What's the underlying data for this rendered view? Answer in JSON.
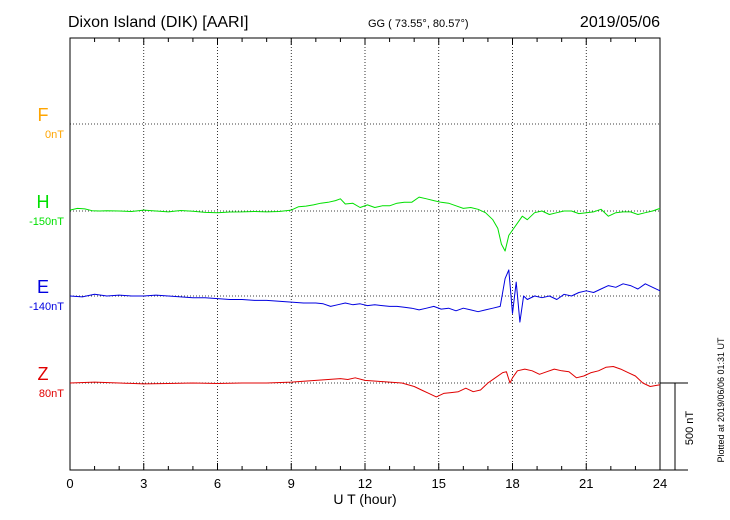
{
  "header": {
    "station": "Dixon Island (DIK)  [AARI]",
    "coords": "GG ( 73.55°,  80.57°)",
    "date": "2019/05/06"
  },
  "side_note": "Plotted at 2019/06/06 01:31  UT",
  "scale_label": "500 nT",
  "chart_data": {
    "type": "line",
    "xlabel": "U T (hour)",
    "xlim": [
      0,
      24
    ],
    "x_ticks": [
      "0",
      "3",
      "6",
      "9",
      "12",
      "15",
      "18",
      "21",
      "24"
    ],
    "scale_bar_nT": 500,
    "grid": true,
    "series": [
      {
        "name": "F",
        "offset_label": "0nT",
        "color": "#ffa500",
        "x": [],
        "y": []
      },
      {
        "name": "H",
        "offset_label": "-150nT",
        "color": "#00e000",
        "x": [
          0,
          0.3,
          0.6,
          0.9,
          1.2,
          1.5,
          2,
          2.5,
          3,
          3.5,
          4,
          4.5,
          5,
          5.5,
          6,
          6.5,
          7,
          7.5,
          8,
          8.5,
          9,
          9.3,
          9.6,
          9.9,
          10.2,
          10.5,
          10.8,
          11.0,
          11.2,
          11.5,
          11.8,
          12.1,
          12.4,
          12.7,
          13.0,
          13.3,
          13.6,
          13.9,
          14.2,
          14.5,
          14.8,
          15.1,
          15.4,
          15.7,
          16.0,
          16.3,
          16.6,
          16.9,
          17.2,
          17.4,
          17.55,
          17.7,
          17.85,
          18.0,
          18.2,
          18.4,
          18.6,
          18.9,
          19.2,
          19.5,
          19.8,
          20.1,
          20.4,
          20.7,
          21.0,
          21.3,
          21.6,
          21.9,
          22.2,
          22.5,
          22.8,
          23.1,
          23.4,
          23.7,
          24
        ],
        "y": [
          5,
          15,
          12,
          2,
          0,
          2,
          0,
          -3,
          5,
          0,
          -5,
          3,
          -2,
          -8,
          -10,
          -6,
          -5,
          -3,
          -5,
          -3,
          5,
          25,
          28,
          35,
          45,
          50,
          60,
          70,
          40,
          45,
          20,
          35,
          20,
          30,
          30,
          45,
          50,
          50,
          80,
          70,
          60,
          50,
          45,
          30,
          15,
          20,
          10,
          -10,
          -50,
          -100,
          -190,
          -230,
          -140,
          -110,
          -70,
          -30,
          -50,
          -10,
          0,
          -20,
          -10,
          0,
          0,
          -15,
          -10,
          -5,
          10,
          -30,
          -10,
          -5,
          -5,
          -20,
          -10,
          0,
          15
        ]
      },
      {
        "name": "E",
        "offset_label": "-140nT",
        "color": "#0000e0",
        "x": [
          0,
          0.5,
          1,
          1.5,
          2,
          2.5,
          3,
          3.5,
          4,
          4.5,
          5,
          5.5,
          6,
          6.5,
          7,
          7.5,
          8,
          8.5,
          9,
          9.5,
          10,
          10.3,
          10.6,
          10.9,
          11.2,
          11.5,
          11.8,
          12.1,
          12.4,
          12.7,
          13.0,
          13.3,
          13.6,
          13.9,
          14.2,
          14.5,
          14.8,
          15.1,
          15.4,
          15.7,
          16.0,
          16.3,
          16.6,
          16.9,
          17.2,
          17.5,
          17.7,
          17.85,
          18.0,
          18.15,
          18.3,
          18.45,
          18.6,
          18.9,
          19.2,
          19.5,
          19.8,
          20.1,
          20.4,
          20.7,
          21.0,
          21.3,
          21.6,
          21.9,
          22.2,
          22.5,
          22.8,
          23.1,
          23.4,
          23.7,
          24
        ],
        "y": [
          0,
          -5,
          10,
          0,
          5,
          0,
          0,
          5,
          0,
          -5,
          -10,
          -10,
          -15,
          -20,
          -20,
          -25,
          -25,
          -30,
          -35,
          -40,
          -40,
          -45,
          -60,
          -50,
          -40,
          -50,
          -45,
          -55,
          -50,
          -55,
          -60,
          -60,
          -65,
          -70,
          -80,
          -70,
          -60,
          -75,
          -70,
          -85,
          -70,
          -80,
          -90,
          -80,
          -70,
          -60,
          100,
          150,
          -100,
          80,
          -150,
          0,
          -20,
          0,
          -10,
          0,
          -20,
          10,
          0,
          20,
          30,
          20,
          40,
          60,
          50,
          70,
          60,
          40,
          70,
          50,
          30
        ]
      },
      {
        "name": "Z",
        "offset_label": "80nT",
        "color": "#e00000",
        "x": [
          0,
          1,
          2,
          3,
          4,
          5,
          6,
          7,
          8,
          9,
          9.5,
          10,
          10.5,
          11,
          11.3,
          11.6,
          12,
          12.5,
          13,
          13.5,
          14,
          14.3,
          14.6,
          14.9,
          15.2,
          15.5,
          15.8,
          16.1,
          16.4,
          16.7,
          17.0,
          17.3,
          17.6,
          17.75,
          17.9,
          18.0,
          18.2,
          18.5,
          18.8,
          19.1,
          19.4,
          19.7,
          20.0,
          20.3,
          20.6,
          20.9,
          21.2,
          21.5,
          21.8,
          22.1,
          22.4,
          22.7,
          23.0,
          23.3,
          23.6,
          24
        ],
        "y": [
          0,
          5,
          0,
          -5,
          -3,
          0,
          -3,
          0,
          0,
          5,
          10,
          15,
          20,
          25,
          20,
          30,
          15,
          10,
          5,
          0,
          -20,
          -40,
          -60,
          -80,
          -60,
          -55,
          -50,
          -30,
          -50,
          -40,
          0,
          30,
          60,
          65,
          0,
          30,
          70,
          80,
          70,
          50,
          65,
          80,
          70,
          65,
          30,
          40,
          60,
          70,
          90,
          95,
          80,
          60,
          40,
          0,
          -20,
          -10
        ]
      }
    ]
  }
}
